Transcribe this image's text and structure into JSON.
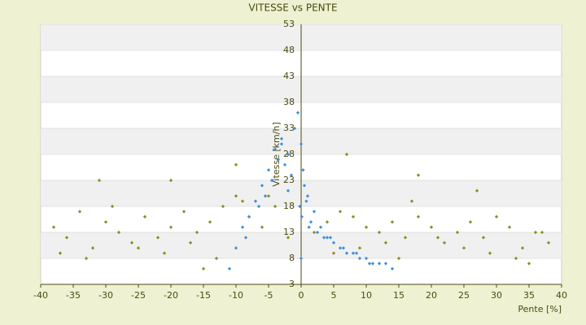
{
  "chart_data": {
    "type": "scatter",
    "title": "VITESSE vs PENTE",
    "x_label": "Pente [%]",
    "y_label": "Vitesse [km/h]",
    "xlim": [
      -40,
      40
    ],
    "xticks": [
      -40,
      -35,
      -30,
      -25,
      -20,
      -15,
      -10,
      -5,
      0,
      5,
      10,
      15,
      20,
      25,
      30,
      35,
      40
    ],
    "ylim": [
      3,
      53
    ],
    "yticks": [
      3,
      8,
      13,
      18,
      23,
      28,
      33,
      38,
      43,
      48,
      53
    ],
    "grid": "bands",
    "series": [
      {
        "color": "#8c8c1a",
        "x": [
          -38,
          -36,
          -34,
          -32,
          -30,
          -28,
          -26,
          -24,
          -22,
          -20,
          -18,
          -16,
          -14,
          -12,
          -10,
          -8,
          -6,
          -4,
          -2,
          2,
          4,
          6,
          8,
          10,
          12,
          14,
          16,
          18,
          20,
          22,
          24,
          26,
          28,
          30,
          32,
          34,
          36,
          38,
          -37,
          -33,
          -29,
          -25,
          -21,
          -17,
          -13,
          -9,
          -5,
          5,
          9,
          13,
          17,
          21,
          25,
          29,
          33,
          37,
          -31,
          -20,
          7,
          18,
          -10,
          27,
          35,
          -15,
          15
        ],
        "values": [
          14,
          12,
          17,
          10,
          15,
          13,
          11,
          16,
          12,
          14,
          17,
          13,
          15,
          18,
          20,
          16,
          14,
          18,
          12,
          13,
          15,
          17,
          16,
          14,
          13,
          15,
          12,
          16,
          14,
          11,
          13,
          15,
          12,
          16,
          14,
          10,
          13,
          11,
          9,
          8,
          18,
          10,
          9,
          11,
          8,
          19,
          20,
          9,
          10,
          11,
          19,
          12,
          10,
          9,
          8,
          13,
          23,
          23,
          28,
          24,
          26,
          21,
          7,
          6,
          8
        ]
      },
      {
        "color": "#3a8fd8",
        "x": [
          -0.5,
          0,
          0.3,
          -1,
          -2,
          -3,
          -4,
          -5,
          -6,
          -7,
          -8,
          -9,
          -10,
          -11,
          1,
          2,
          3,
          4,
          5,
          6,
          7,
          8,
          9,
          10,
          11,
          12,
          13,
          14,
          0.5,
          1.5,
          2.5,
          3.5,
          -1.5,
          -2.5,
          -3.5,
          -4.5,
          -0.2,
          0.1,
          0.8,
          1.2,
          4.5,
          6.5,
          8.5,
          10.5,
          -6.5,
          -8.5,
          -5.5,
          -3,
          -2,
          0
        ],
        "values": [
          36,
          30,
          25,
          33,
          28,
          31,
          29,
          25,
          22,
          19,
          16,
          14,
          10,
          6,
          20,
          17,
          14,
          12,
          11,
          10,
          9,
          9,
          8,
          8,
          7,
          7,
          7,
          6,
          22,
          15,
          13,
          12,
          24,
          26,
          27,
          23,
          18,
          16,
          19,
          14,
          12,
          10,
          9,
          7,
          18,
          12,
          20,
          30,
          21,
          8
        ]
      }
    ]
  }
}
